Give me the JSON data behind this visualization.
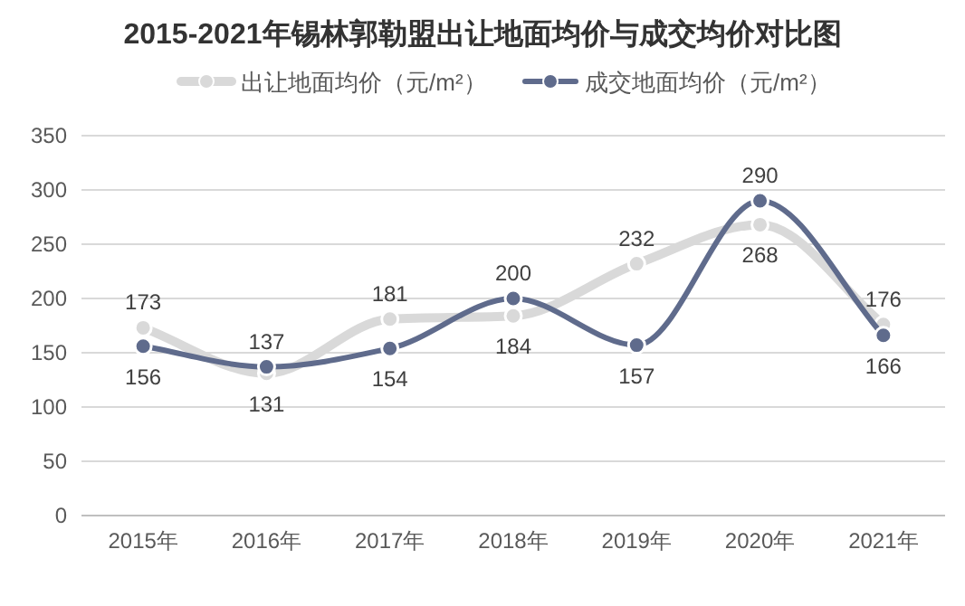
{
  "chart_data": {
    "type": "line",
    "title": "2015-2021年锡林郭勒盟出让地面均价与成交均价对比图",
    "categories": [
      "2015年",
      "2016年",
      "2017年",
      "2018年",
      "2019年",
      "2020年",
      "2021年"
    ],
    "series": [
      {
        "name": "出让地面均价（元/m²）",
        "color": "#d9d9d9",
        "values": [
          173,
          131,
          181,
          184,
          232,
          268,
          176
        ]
      },
      {
        "name": "成交地面均价（元/m²）",
        "color": "#5f6b8c",
        "values": [
          156,
          137,
          154,
          200,
          157,
          290,
          166
        ]
      }
    ],
    "ylim": [
      0,
      350
    ],
    "yticks": [
      0,
      50,
      100,
      150,
      200,
      250,
      300,
      350
    ],
    "grid": "y",
    "legend": "top",
    "marker": "circle",
    "line_style": "solid",
    "data_labels": true
  }
}
